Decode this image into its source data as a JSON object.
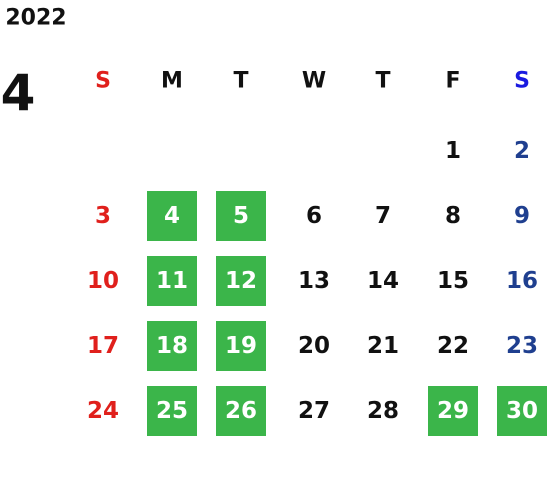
{
  "year": "2022",
  "month": "4",
  "weekdays": [
    "S",
    "M",
    "T",
    "W",
    "T",
    "F",
    "S"
  ],
  "weeks": [
    [
      null,
      null,
      null,
      null,
      null,
      "1",
      "2"
    ],
    [
      "3",
      "4",
      "5",
      "6",
      "7",
      "8",
      "9"
    ],
    [
      "10",
      "11",
      "12",
      "13",
      "14",
      "15",
      "16"
    ],
    [
      "17",
      "18",
      "19",
      "20",
      "21",
      "22",
      "23"
    ],
    [
      "24",
      "25",
      "26",
      "27",
      "28",
      "29",
      "30"
    ]
  ],
  "highlighted": [
    [
      false,
      false,
      false,
      false,
      false,
      false,
      false
    ],
    [
      false,
      true,
      true,
      false,
      false,
      false,
      false
    ],
    [
      false,
      true,
      true,
      false,
      false,
      false,
      false
    ],
    [
      false,
      true,
      true,
      false,
      false,
      false,
      false
    ],
    [
      false,
      true,
      true,
      false,
      false,
      true,
      true
    ]
  ]
}
